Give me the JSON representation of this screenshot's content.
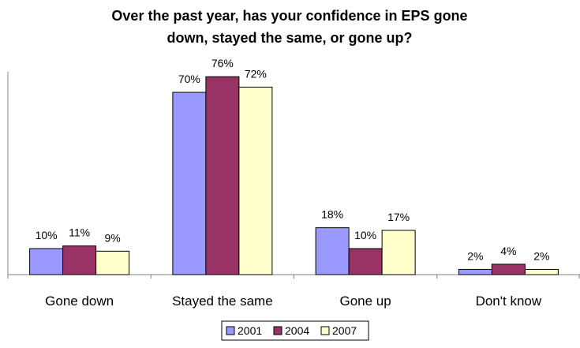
{
  "chart_data": {
    "type": "bar",
    "title_lines": [
      "Over the past year, has your confidence in EPS gone",
      "down, stayed the same, or gone up?"
    ],
    "title": "Over the past year, has your confidence in EPS gone down, stayed the same, or gone up?",
    "categories": [
      "Gone down",
      "Stayed the same",
      "Gone up",
      "Don't know"
    ],
    "series": [
      {
        "name": "2001",
        "values": [
          10,
          70,
          18,
          2
        ],
        "labels": [
          "10%",
          "70%",
          "18%",
          "2%"
        ],
        "color": "#9999ff"
      },
      {
        "name": "2004",
        "values": [
          11,
          76,
          10,
          4
        ],
        "labels": [
          "11%",
          "76%",
          "10%",
          "4%"
        ],
        "color": "#993366"
      },
      {
        "name": "2007",
        "values": [
          9,
          72,
          17,
          2
        ],
        "labels": [
          "9%",
          "72%",
          "17%",
          "2%"
        ],
        "color": "#ffffcc"
      }
    ],
    "xlabel": "",
    "ylabel": "",
    "ylim": [
      0,
      80
    ],
    "grid": false,
    "legend_position": "bottom",
    "data_labels": true
  }
}
